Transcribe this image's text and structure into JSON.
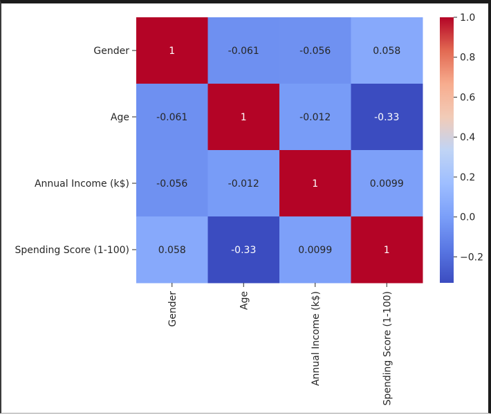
{
  "chart_data": {
    "type": "heatmap",
    "title": "",
    "xlabel": "",
    "ylabel": "",
    "x_categories": [
      "Gender",
      "Age",
      "Annual Income (k$)",
      "Spending Score (1-100)"
    ],
    "y_categories": [
      "Gender",
      "Age",
      "Annual Income (k$)",
      "Spending Score (1-100)"
    ],
    "values": [
      [
        1,
        -0.061,
        -0.056,
        0.058
      ],
      [
        -0.061,
        1,
        -0.012,
        -0.33
      ],
      [
        -0.056,
        -0.012,
        1,
        0.0099
      ],
      [
        0.058,
        -0.33,
        0.0099,
        1
      ]
    ],
    "annotations": [
      [
        "1",
        "-0.061",
        "-0.056",
        "0.058"
      ],
      [
        "-0.061",
        "1",
        "-0.012",
        "-0.33"
      ],
      [
        "-0.056",
        "-0.012",
        "1",
        "0.0099"
      ],
      [
        "0.058",
        "-0.33",
        "0.0099",
        "1"
      ]
    ],
    "colormap": "coolwarm",
    "vmin": -0.33,
    "vmax": 1.0,
    "colorbar": {
      "ticks": [
        1.0,
        0.8,
        0.6,
        0.4,
        0.2,
        0.0,
        -0.2
      ],
      "tick_labels": [
        "1.0",
        "0.8",
        "0.6",
        "0.4",
        "0.2",
        "0.0",
        "−0.2"
      ]
    }
  }
}
